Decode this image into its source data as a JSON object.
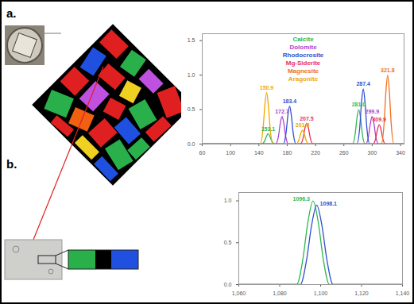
{
  "panel_labels": [
    "a.",
    "b."
  ],
  "chart_data": [
    {
      "type": "line",
      "legend": "top",
      "xlim": [
        60,
        345
      ],
      "xticks": [
        60,
        100,
        140,
        180,
        220,
        260,
        300,
        340
      ],
      "ylim": [
        0,
        1.6
      ],
      "yticks": [
        0,
        0.5,
        1,
        1.5
      ],
      "series": [
        {
          "name": "Calcite",
          "color": "#2db84d",
          "x": [
            60,
            144.1,
            148.1,
            150.6,
            153.1,
            155.6,
            158.1,
            162.1,
            272,
            276,
            278.5,
            281,
            283.5,
            286,
            290,
            345
          ],
          "values": [
            0,
            0,
            0.045,
            0.11,
            0.15,
            0.11,
            0.045,
            0,
            0,
            0.15,
            0.38,
            0.5,
            0.38,
            0.15,
            0,
            0
          ],
          "peaks": [
            153.1,
            281
          ],
          "peak_labels": [
            "153.1",
            "281.0"
          ]
        },
        {
          "name": "Dolomite",
          "color": "#b040d0",
          "x": [
            60,
            163.7,
            167.7,
            170.2,
            172.7,
            175.2,
            177.7,
            181.7,
            290.9,
            294.9,
            297.4,
            299.9,
            302.4,
            304.9,
            308.9,
            345
          ],
          "values": [
            0,
            0,
            0.12,
            0.3,
            0.4,
            0.3,
            0.12,
            0,
            0,
            0.12,
            0.3,
            0.4,
            0.3,
            0.12,
            0,
            0
          ],
          "peaks": [
            172.7,
            299.9
          ],
          "peak_labels": [
            "172.7",
            "299.9"
          ]
        },
        {
          "name": "Rhodocrosite",
          "color": "#3050d0",
          "x": [
            60,
            174.4,
            178.4,
            180.9,
            183.4,
            185.9,
            188.4,
            192.4,
            278.4,
            282.4,
            284.9,
            287.4,
            289.9,
            292.4,
            296.4,
            345
          ],
          "values": [
            0,
            0,
            0.165,
            0.41,
            0.55,
            0.41,
            0.165,
            0,
            0,
            0.24,
            0.6,
            0.8,
            0.6,
            0.24,
            0,
            0
          ],
          "peaks": [
            183.4,
            287.4
          ],
          "peak_labels": [
            "183.4",
            "287.4"
          ]
        },
        {
          "name": "Mg-Siderite",
          "color": "#e8305a",
          "x": [
            60,
            198.5,
            202.5,
            205,
            207.5,
            210,
            212.5,
            216.5,
            300.9,
            304.9,
            307.4,
            309.9,
            312.4,
            314.9,
            318.9,
            345
          ],
          "values": [
            0,
            0,
            0.09,
            0.23,
            0.3,
            0.23,
            0.09,
            0,
            0,
            0.08,
            0.21,
            0.28,
            0.21,
            0.08,
            0,
            0
          ],
          "peaks": [
            207.5,
            309.9
          ],
          "peak_labels": [
            "207.5",
            "309.9"
          ]
        },
        {
          "name": "Magnesite",
          "color": "#f07020",
          "x": [
            60,
            312.8,
            316.8,
            319.3,
            321.8,
            324.3,
            326.8,
            330.8,
            345
          ],
          "values": [
            0,
            0,
            0.3,
            0.75,
            1,
            0.75,
            0.3,
            0,
            0
          ],
          "peaks": [
            321.8
          ],
          "peak_labels": [
            "321.8"
          ]
        },
        {
          "name": "Aragonite",
          "color": "#f0a800",
          "x": [
            60,
            141.9,
            145.9,
            148.4,
            150.9,
            153.4,
            155.9,
            159.9,
            192.5,
            196.5,
            199,
            201.5,
            204,
            206.5,
            210.5,
            345
          ],
          "values": [
            0,
            0,
            0.225,
            0.56,
            0.75,
            0.56,
            0.225,
            0,
            0,
            0.06,
            0.15,
            0.2,
            0.15,
            0.06,
            0,
            0
          ],
          "peaks": [
            150.9,
            201.5
          ],
          "peak_labels": [
            "150.9",
            "201.5"
          ]
        }
      ]
    },
    {
      "type": "line",
      "xlim": [
        1060,
        1140
      ],
      "xticks": [
        1060,
        1080,
        1100,
        1120,
        1140
      ],
      "ylim": [
        0,
        1.1
      ],
      "yticks": [
        0,
        0.5,
        1
      ],
      "series": [
        {
          "color": "#2db84d",
          "x": [
            1060,
            1088.3,
            1091.3,
            1093.8,
            1096.3,
            1098.8,
            1101.3,
            1104.3,
            1140
          ],
          "values": [
            0,
            0,
            0.3,
            0.75,
            1,
            0.75,
            0.3,
            0,
            0
          ],
          "peaks": [
            1096.3
          ],
          "peak_labels": [
            "1096.3"
          ]
        },
        {
          "color": "#3050d0",
          "x": [
            1060,
            1090.1,
            1093.1,
            1095.6,
            1098.1,
            1100.6,
            1103.1,
            1106.1,
            1140
          ],
          "values": [
            0,
            0,
            0.29,
            0.71,
            0.95,
            0.71,
            0.29,
            0,
            0
          ],
          "peaks": [
            1098.1
          ],
          "peak_labels": [
            "1098.1"
          ]
        }
      ]
    }
  ]
}
